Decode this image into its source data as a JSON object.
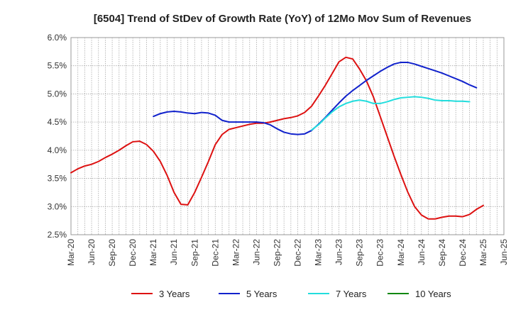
{
  "chart_data": {
    "type": "line",
    "title": "[6504]  Trend of StDev of Growth Rate (YoY) of 12Mo Mov Sum of Revenues",
    "xlabel": "",
    "ylabel": "",
    "ylim": [
      2.5,
      6.0
    ],
    "y_ticks": [
      "2.5%",
      "3.0%",
      "3.5%",
      "4.0%",
      "4.5%",
      "5.0%",
      "5.5%",
      "6.0%"
    ],
    "y_tick_values": [
      2.5,
      3.0,
      3.5,
      4.0,
      4.5,
      5.0,
      5.5,
      6.0
    ],
    "x_ticks": [
      "Mar-20",
      "Jun-20",
      "Sep-20",
      "Dec-20",
      "Mar-21",
      "Jun-21",
      "Sep-21",
      "Dec-21",
      "Mar-22",
      "Jun-22",
      "Sep-22",
      "Dec-22",
      "Mar-23",
      "Jun-23",
      "Sep-23",
      "Dec-23",
      "Mar-24",
      "Jun-24",
      "Sep-24",
      "Dec-24",
      "Mar-25",
      "Jun-25"
    ],
    "grid": true,
    "legend_position": "bottom",
    "series": [
      {
        "name": "3 Years",
        "color": "#dd1111",
        "start_index": 0,
        "values": [
          3.6,
          3.67,
          3.72,
          3.75,
          3.8,
          3.87,
          3.93,
          4.0,
          4.08,
          4.15,
          4.16,
          4.1,
          3.98,
          3.8,
          3.55,
          3.25,
          3.04,
          3.03,
          3.25,
          3.52,
          3.8,
          4.1,
          4.28,
          4.37,
          4.4,
          4.43,
          4.46,
          4.48,
          4.48,
          4.5,
          4.53,
          4.56,
          4.58,
          4.61,
          4.67,
          4.78,
          4.96,
          5.15,
          5.36,
          5.57,
          5.65,
          5.62,
          5.44,
          5.23,
          4.95,
          4.6,
          4.25,
          3.9,
          3.57,
          3.26,
          3.0,
          2.85,
          2.78,
          2.78,
          2.81,
          2.83,
          2.83,
          2.82,
          2.86,
          2.95,
          3.02
        ]
      },
      {
        "name": "5 Years",
        "color": "#1122cc",
        "start_index": 12,
        "values": [
          4.6,
          4.65,
          4.68,
          4.69,
          4.68,
          4.66,
          4.65,
          4.67,
          4.66,
          4.62,
          4.53,
          4.5,
          4.5,
          4.5,
          4.5,
          4.5,
          4.49,
          4.45,
          4.38,
          4.32,
          4.29,
          4.28,
          4.29,
          4.35,
          4.46,
          4.58,
          4.71,
          4.84,
          4.96,
          5.06,
          5.15,
          5.24,
          5.32,
          5.4,
          5.47,
          5.53,
          5.56,
          5.56,
          5.53,
          5.49,
          5.45,
          5.41,
          5.37,
          5.32,
          5.27,
          5.22,
          5.16,
          5.11
        ]
      },
      {
        "name": "7 Years",
        "color": "#22dddd",
        "start_index": 35,
        "values": [
          4.36,
          4.45,
          4.57,
          4.68,
          4.77,
          4.83,
          4.87,
          4.89,
          4.87,
          4.83,
          4.83,
          4.86,
          4.9,
          4.93,
          4.94,
          4.95,
          4.94,
          4.92,
          4.89,
          4.88,
          4.88,
          4.87,
          4.87,
          4.86
        ]
      },
      {
        "name": "10 Years",
        "color": "#118811",
        "start_index": 0,
        "values": []
      }
    ]
  }
}
